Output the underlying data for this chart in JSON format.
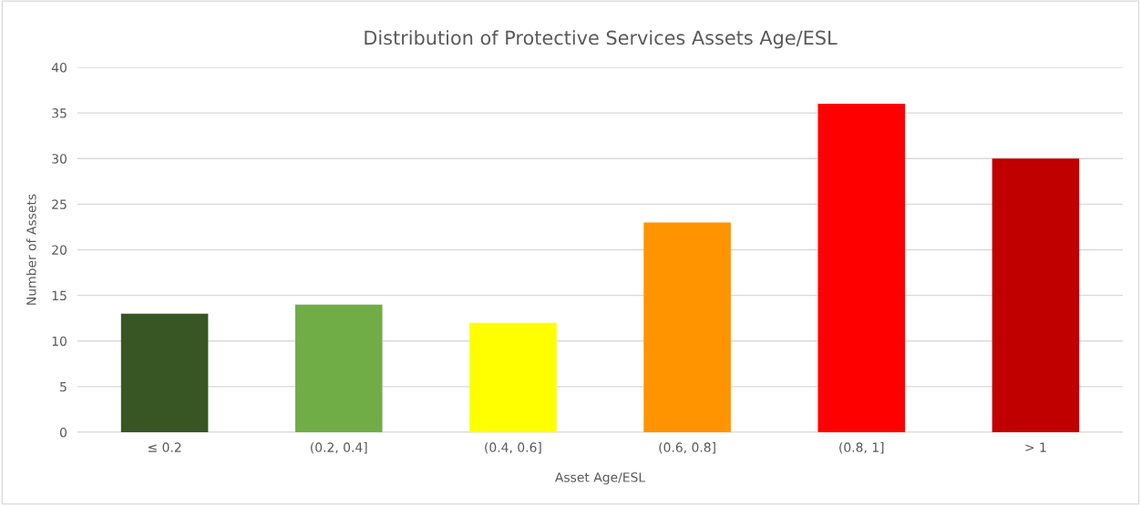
{
  "chart_data": {
    "type": "bar",
    "title": "Distribution of Protective Services Assets Age/ESL",
    "xlabel": "Asset Age/ESL",
    "ylabel": "Number of Assets",
    "categories": [
      "≤ 0.2",
      "(0.2, 0.4]",
      "(0.4, 0.6]",
      "(0.6, 0.8]",
      "(0.8, 1]",
      "> 1"
    ],
    "values": [
      13,
      14,
      12,
      23,
      36,
      30
    ],
    "colors": [
      "#375623",
      "#70ad47",
      "#ffff00",
      "#ff9400",
      "#ff0000",
      "#c00000"
    ],
    "ylim": [
      0,
      40
    ],
    "yticks": [
      0,
      5,
      10,
      15,
      20,
      25,
      30,
      35,
      40
    ],
    "grid": "y",
    "legend": false
  }
}
